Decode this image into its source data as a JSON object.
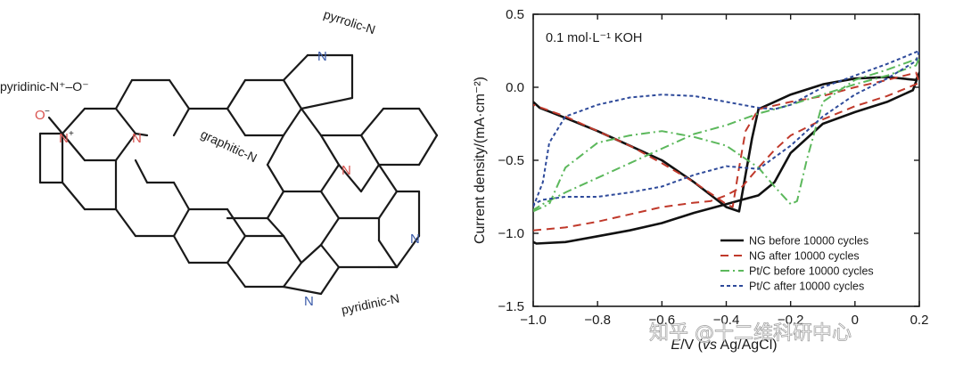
{
  "molecule": {
    "labels": {
      "pyridinic_n_oxide": "pyridinic-N⁺–O⁻",
      "pyrrolic": "pyrrolic-N",
      "graphitic": "graphitic-N",
      "pyridinic": "pyridinic-N"
    },
    "atoms": {
      "N": "N",
      "N_plus": "N⁺",
      "O": "O",
      "O_minus": "O⁻"
    },
    "colors": {
      "nitrogen_red": "#d9534f",
      "nitrogen_blue": "#3b5ba9",
      "bond": "#1a1a1a"
    }
  },
  "chart_data": {
    "type": "line",
    "title": "",
    "annotation": "0.1 mol·L⁻¹ KOH",
    "xlabel_parts": [
      "E",
      "/V (",
      "vs",
      " Ag/AgCl)"
    ],
    "ylabel": "Current density/(mA·cm⁻²)",
    "xlim": [
      -1.0,
      0.2
    ],
    "ylim": [
      -1.5,
      0.5
    ],
    "xticks": [
      -1.0,
      -0.8,
      -0.6,
      -0.4,
      -0.2,
      0.0,
      0.2
    ],
    "xtick_labels": [
      "−1.0",
      "−0.8",
      "−0.6",
      "−0.4",
      "−0.2",
      "0",
      "0.2"
    ],
    "yticks": [
      -1.5,
      -1.0,
      -0.5,
      0.0,
      0.5
    ],
    "ytick_labels": [
      "−1.5",
      "−1.0",
      "−0.5",
      "0.0",
      "0.5"
    ],
    "legend_position": "bottom-right",
    "series": [
      {
        "name": "NG before 10000 cycles",
        "color": "#111111",
        "style": "solid",
        "x": [
          -1.0,
          -0.99,
          -0.9,
          -0.8,
          -0.7,
          -0.6,
          -0.5,
          -0.45,
          -0.4,
          -0.35,
          -0.3,
          -0.25,
          -0.2,
          -0.1,
          0.0,
          0.1,
          0.18,
          0.2,
          0.19,
          0.1,
          0.0,
          -0.1,
          -0.2,
          -0.25,
          -0.3,
          -0.32,
          -0.34,
          -0.36,
          -0.4,
          -0.5,
          -0.6,
          -0.7,
          -0.8,
          -0.9,
          -0.98,
          -1.0
        ],
        "y": [
          -1.06,
          -1.07,
          -1.06,
          -1.02,
          -0.98,
          -0.93,
          -0.86,
          -0.83,
          -0.8,
          -0.77,
          -0.74,
          -0.65,
          -0.45,
          -0.25,
          -0.17,
          -0.1,
          -0.02,
          0.1,
          0.05,
          0.07,
          0.06,
          0.02,
          -0.05,
          -0.1,
          -0.15,
          -0.35,
          -0.6,
          -0.85,
          -0.82,
          -0.65,
          -0.5,
          -0.4,
          -0.3,
          -0.21,
          -0.14,
          -0.1
        ]
      },
      {
        "name": "NG after 10000 cycles",
        "color": "#c0392b",
        "style": "dashed",
        "x": [
          -1.0,
          -0.9,
          -0.8,
          -0.7,
          -0.6,
          -0.5,
          -0.45,
          -0.4,
          -0.35,
          -0.3,
          -0.25,
          -0.2,
          -0.1,
          0.0,
          0.1,
          0.2,
          0.19,
          0.1,
          0.0,
          -0.1,
          -0.2,
          -0.3,
          -0.34,
          -0.36,
          -0.38,
          -0.4,
          -0.5,
          -0.6,
          -0.7,
          -0.8,
          -0.9,
          -1.0
        ],
        "y": [
          -0.98,
          -0.96,
          -0.92,
          -0.87,
          -0.82,
          -0.79,
          -0.78,
          -0.74,
          -0.68,
          -0.55,
          -0.43,
          -0.33,
          -0.22,
          -0.13,
          -0.06,
          0.03,
          0.1,
          0.05,
          0.0,
          -0.06,
          -0.1,
          -0.15,
          -0.3,
          -0.55,
          -0.82,
          -0.8,
          -0.65,
          -0.52,
          -0.4,
          -0.3,
          -0.2,
          -0.12
        ]
      },
      {
        "name": "Pt/C before 10000 cycles",
        "color": "#5cb85c",
        "style": "dashdot",
        "x": [
          -1.0,
          -0.95,
          -0.9,
          -0.8,
          -0.7,
          -0.6,
          -0.5,
          -0.4,
          -0.3,
          -0.25,
          -0.2,
          -0.18,
          -0.15,
          -0.1,
          0.0,
          0.1,
          0.2,
          0.19,
          0.1,
          0.0,
          -0.1,
          -0.2,
          -0.3,
          -0.4,
          -0.5,
          -0.6,
          -0.7,
          -0.8,
          -0.9,
          -0.97,
          -1.0
        ],
        "y": [
          -0.85,
          -0.8,
          -0.55,
          -0.38,
          -0.33,
          -0.3,
          -0.34,
          -0.4,
          -0.55,
          -0.68,
          -0.8,
          -0.78,
          -0.5,
          -0.1,
          0.05,
          0.12,
          0.2,
          0.15,
          0.08,
          0.02,
          -0.05,
          -0.12,
          -0.18,
          -0.26,
          -0.32,
          -0.42,
          -0.52,
          -0.62,
          -0.72,
          -0.8,
          -0.84
        ]
      },
      {
        "name": "Pt/C after 10000 cycles",
        "color": "#2e4a9a",
        "style": "dotted",
        "x": [
          -1.0,
          -0.97,
          -0.95,
          -0.9,
          -0.8,
          -0.7,
          -0.6,
          -0.5,
          -0.45,
          -0.4,
          -0.35,
          -0.3,
          -0.25,
          -0.2,
          -0.15,
          -0.1,
          0.0,
          0.1,
          0.2,
          0.19,
          0.1,
          0.0,
          -0.1,
          -0.2,
          -0.3,
          -0.4,
          -0.5,
          -0.6,
          -0.7,
          -0.8,
          -0.9,
          -0.97,
          -1.0
        ],
        "y": [
          -0.82,
          -0.65,
          -0.38,
          -0.2,
          -0.12,
          -0.07,
          -0.05,
          -0.06,
          -0.08,
          -0.1,
          -0.12,
          -0.14,
          -0.15,
          -0.12,
          -0.06,
          0.0,
          0.08,
          0.16,
          0.25,
          0.18,
          0.06,
          -0.05,
          -0.2,
          -0.4,
          -0.56,
          -0.54,
          -0.6,
          -0.68,
          -0.72,
          -0.75,
          -0.75,
          -0.77,
          -0.8
        ]
      }
    ]
  },
  "watermark": "知乎 @十二维科研中心"
}
